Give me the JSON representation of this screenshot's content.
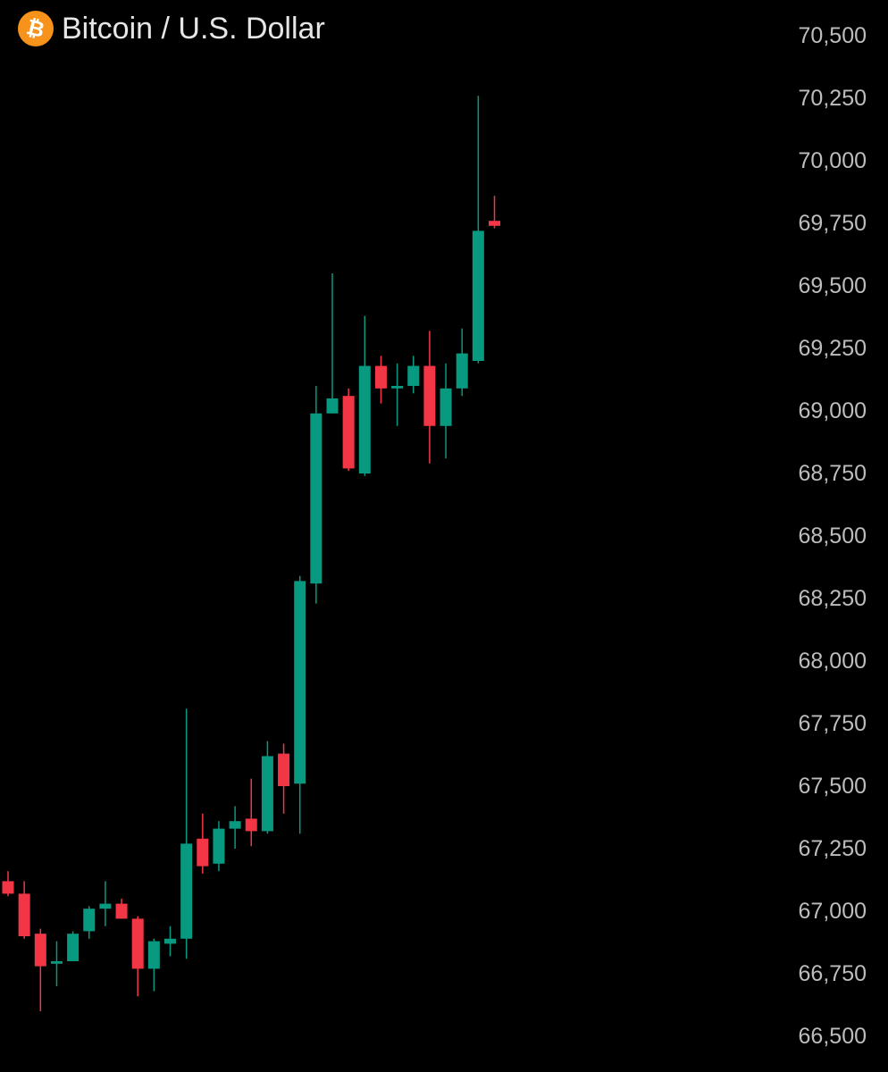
{
  "header": {
    "title": "Bitcoin / U.S. Dollar",
    "logo_glyph": "₿",
    "logo_icon": "bitcoin-icon",
    "logo_color": "#f7931a"
  },
  "chart_data": {
    "type": "candlestick",
    "title": "Bitcoin / U.S. Dollar",
    "xlabel": "",
    "ylabel": "",
    "ylim": [
      66500,
      70500
    ],
    "yticks": [
      70500,
      70250,
      70000,
      69750,
      69500,
      69250,
      69000,
      68750,
      68500,
      68250,
      68000,
      67750,
      67500,
      67250,
      67000,
      66750,
      66500
    ],
    "ytick_labels": [
      "70,500",
      "70,250",
      "70,000",
      "69,750",
      "69,500",
      "69,250",
      "69,000",
      "68,750",
      "68,500",
      "68,250",
      "68,000",
      "67,750",
      "67,500",
      "67,250",
      "67,000",
      "66,750",
      "66,500"
    ],
    "axis_position": "right",
    "grid": false,
    "up_color": "#089981",
    "down_color": "#f23645",
    "candles": [
      {
        "o": 67120,
        "h": 67160,
        "l": 67060,
        "c": 67070
      },
      {
        "o": 67070,
        "h": 67120,
        "l": 66890,
        "c": 66900
      },
      {
        "o": 66910,
        "h": 66930,
        "l": 66600,
        "c": 66780
      },
      {
        "o": 66790,
        "h": 66880,
        "l": 66700,
        "c": 66800
      },
      {
        "o": 66800,
        "h": 66920,
        "l": 66800,
        "c": 66910
      },
      {
        "o": 66920,
        "h": 67020,
        "l": 66890,
        "c": 67010
      },
      {
        "o": 67010,
        "h": 67120,
        "l": 66940,
        "c": 67030
      },
      {
        "o": 67030,
        "h": 67050,
        "l": 66970,
        "c": 66970
      },
      {
        "o": 66970,
        "h": 66980,
        "l": 66660,
        "c": 66770
      },
      {
        "o": 66770,
        "h": 66890,
        "l": 66680,
        "c": 66880
      },
      {
        "o": 66870,
        "h": 66940,
        "l": 66820,
        "c": 66890
      },
      {
        "o": 66890,
        "h": 67810,
        "l": 66810,
        "c": 67270
      },
      {
        "o": 67290,
        "h": 67390,
        "l": 67150,
        "c": 67180
      },
      {
        "o": 67190,
        "h": 67360,
        "l": 67160,
        "c": 67330
      },
      {
        "o": 67330,
        "h": 67420,
        "l": 67250,
        "c": 67360
      },
      {
        "o": 67370,
        "h": 67530,
        "l": 67260,
        "c": 67320
      },
      {
        "o": 67320,
        "h": 67680,
        "l": 67310,
        "c": 67620
      },
      {
        "o": 67630,
        "h": 67670,
        "l": 67390,
        "c": 67500
      },
      {
        "o": 67510,
        "h": 68340,
        "l": 67310,
        "c": 68320
      },
      {
        "o": 68310,
        "h": 69100,
        "l": 68230,
        "c": 68990
      },
      {
        "o": 68990,
        "h": 69550,
        "l": 68990,
        "c": 69050
      },
      {
        "o": 69060,
        "h": 69090,
        "l": 68760,
        "c": 68770
      },
      {
        "o": 68750,
        "h": 69380,
        "l": 68740,
        "c": 69180
      },
      {
        "o": 69180,
        "h": 69220,
        "l": 69030,
        "c": 69090
      },
      {
        "o": 69090,
        "h": 69190,
        "l": 68940,
        "c": 69100
      },
      {
        "o": 69100,
        "h": 69220,
        "l": 69070,
        "c": 69180
      },
      {
        "o": 69180,
        "h": 69320,
        "l": 68790,
        "c": 68940
      },
      {
        "o": 68940,
        "h": 69190,
        "l": 68810,
        "c": 69090
      },
      {
        "o": 69090,
        "h": 69330,
        "l": 69060,
        "c": 69230
      },
      {
        "o": 69200,
        "h": 70260,
        "l": 69190,
        "c": 69720
      },
      {
        "o": 69760,
        "h": 69860,
        "l": 69730,
        "c": 69740
      }
    ]
  }
}
